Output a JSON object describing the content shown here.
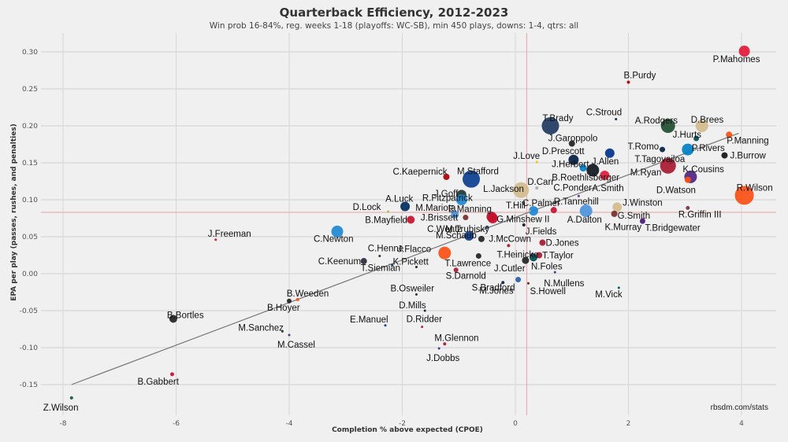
{
  "chart_data": {
    "type": "scatter",
    "title": "Quarterback Efficiency, 2012-2023",
    "subtitle": "Win prob 16-84%, reg. weeks 1-18 (playoffs: WC-SB), min 450 plays, downs: 1-4, qtrs: all",
    "xlabel": "Completion % above expected (CPOE)",
    "ylabel": "EPA per play (passes, rushes, and penalties)",
    "xlim": [
      -8.3,
      4.6
    ],
    "ylim": [
      -0.18,
      0.32
    ],
    "xticks": [
      -8,
      -6,
      -4,
      -2,
      0,
      2,
      4
    ],
    "xtick_labels": [
      "-8",
      "-6",
      "-4",
      "-2",
      "0",
      "2",
      "4"
    ],
    "yticks": [
      0.3,
      0.25,
      0.2,
      0.15,
      0.1,
      0.05,
      0.0,
      -0.05,
      -0.1,
      -0.15
    ],
    "ytick_labels": [
      "0.30",
      "0.25",
      "0.20",
      "0.15",
      "0.10",
      "0.05",
      "0.00",
      "-0.05",
      "-0.10",
      "-0.15"
    ],
    "grid": true,
    "reference_lines": {
      "x_mean": 0.2,
      "y_mean": 0.083,
      "color": "#e8a0a0"
    },
    "trend_line": {
      "x": [
        -7.85,
        3.95
      ],
      "y": [
        -0.15,
        0.19
      ],
      "color": "#777777"
    },
    "credit": "rbsdm.com/stats",
    "points": [
      {
        "name": "P.Mahomes",
        "x": 4.05,
        "y": 0.301,
        "size": 7,
        "color": "#e31837"
      },
      {
        "name": "B.Purdy",
        "x": 2.0,
        "y": 0.259,
        "size": 2,
        "color": "#aa0000"
      },
      {
        "name": "T.Brady",
        "x": 0.62,
        "y": 0.2,
        "size": 11,
        "color": "#203a60"
      },
      {
        "name": "C.Stroud",
        "x": 1.78,
        "y": 0.209,
        "size": 1.5,
        "color": "#03202f"
      },
      {
        "name": "A.Rodgers",
        "x": 2.7,
        "y": 0.2,
        "size": 9,
        "color": "#204e32"
      },
      {
        "name": "D.Brees",
        "x": 3.3,
        "y": 0.2,
        "size": 8,
        "color": "#d3bc8d"
      },
      {
        "name": "J.Hurts",
        "x": 3.2,
        "y": 0.183,
        "size": 3.5,
        "color": "#004c54"
      },
      {
        "name": "P.Manning",
        "x": 3.78,
        "y": 0.188,
        "size": 4,
        "color": "#fb4f14"
      },
      {
        "name": "J.Garoppolo",
        "x": 1.0,
        "y": 0.176,
        "size": 4,
        "color": "#222222"
      },
      {
        "name": "T.Romo",
        "x": 2.6,
        "y": 0.168,
        "size": 3.5,
        "color": "#041e42"
      },
      {
        "name": "P.Rivers",
        "x": 3.05,
        "y": 0.168,
        "size": 7.5,
        "color": "#0080c6"
      },
      {
        "name": "D.Prescott",
        "x": 1.03,
        "y": 0.154,
        "size": 6.5,
        "color": "#041e42"
      },
      {
        "name": "J.Allen",
        "x": 1.67,
        "y": 0.163,
        "size": 6,
        "color": "#00338d"
      },
      {
        "name": "J.Burrow",
        "x": 3.7,
        "y": 0.16,
        "size": 4,
        "color": "#111111"
      },
      {
        "name": "J.Herbert",
        "x": 1.2,
        "y": 0.143,
        "size": 4.5,
        "color": "#0080c6"
      },
      {
        "name": "B.Roethlisberger",
        "x": 1.37,
        "y": 0.14,
        "size": 8,
        "color": "#101820"
      },
      {
        "name": "T.Tagovailoa",
        "x": 2.75,
        "y": 0.151,
        "size": 3,
        "color": "#008e97"
      },
      {
        "name": "M.Ryan",
        "x": 2.7,
        "y": 0.146,
        "size": 10,
        "color": "#a71930"
      },
      {
        "name": "J.Love",
        "x": 0.38,
        "y": 0.151,
        "size": 1.5,
        "color": "#ffb612"
      },
      {
        "name": "A.Smith",
        "x": 1.58,
        "y": 0.133,
        "size": 6,
        "color": "#e31837"
      },
      {
        "name": "K.Cousins",
        "x": 3.1,
        "y": 0.131,
        "size": 8,
        "color": "#4f2683"
      },
      {
        "name": "D.Watson",
        "x": 3.05,
        "y": 0.127,
        "size": 4,
        "color": "#fb4f14"
      },
      {
        "name": "C.Kaepernick",
        "x": -1.22,
        "y": 0.131,
        "size": 4,
        "color": "#aa0000"
      },
      {
        "name": "M.Stafford",
        "x": -0.78,
        "y": 0.128,
        "size": 11,
        "color": "#0b3e91"
      },
      {
        "name": "R.Fitzpatrick",
        "x": -0.95,
        "y": 0.107,
        "size": 6,
        "color": "#203731"
      },
      {
        "name": "J.Goff",
        "x": -0.95,
        "y": 0.1,
        "size": 7,
        "color": "#1e88d3"
      },
      {
        "name": "L.Jackson",
        "x": 0.1,
        "y": 0.113,
        "size": 10,
        "color": "#d3bc8d"
      },
      {
        "name": "D.Carr",
        "x": 0.38,
        "y": 0.116,
        "size": 2,
        "color": "#a5acaf"
      },
      {
        "name": "A.Luck",
        "x": -1.95,
        "y": 0.091,
        "size": 6,
        "color": "#002c5f"
      },
      {
        "name": "R.Wilson",
        "x": 4.05,
        "y": 0.106,
        "size": 12,
        "color": "#fb4f14"
      },
      {
        "name": "D.Lock",
        "x": -2.25,
        "y": 0.084,
        "size": 1.5,
        "color": "#a3c14a"
      },
      {
        "name": "C.Palmer",
        "x": 0.32,
        "y": 0.085,
        "size": 6,
        "color": "#1e88d3"
      },
      {
        "name": "R.Tannehill",
        "x": 0.68,
        "y": 0.086,
        "size": 4,
        "color": "#c8102e"
      },
      {
        "name": "A.Dalton",
        "x": 1.25,
        "y": 0.085,
        "size": 8,
        "color": "#4b92db"
      },
      {
        "name": "C.Ponder",
        "x": 1.12,
        "y": 0.105,
        "size": 1.5,
        "color": "#4f2683"
      },
      {
        "name": "J.Winston",
        "x": 1.8,
        "y": 0.09,
        "size": 6,
        "color": "#d3bc8d"
      },
      {
        "name": "G.Smith",
        "x": 1.75,
        "y": 0.081,
        "size": 4,
        "color": "#7a2a2a"
      },
      {
        "name": "R.Griffin III",
        "x": 3.05,
        "y": 0.089,
        "size": 2.5,
        "color": "#773141"
      },
      {
        "name": "K.Murray",
        "x": 2.25,
        "y": 0.072,
        "size": 3,
        "color": "#97233f"
      },
      {
        "name": "T.Bridgewater",
        "x": 2.25,
        "y": 0.071,
        "size": 3.5,
        "color": "#4f2683"
      },
      {
        "name": "T.Hill",
        "x": 0.25,
        "y": 0.085,
        "size": 1.5,
        "color": "#d3bc8d"
      },
      {
        "name": "M.Mariota",
        "x": -1.07,
        "y": 0.08,
        "size": 5,
        "color": "#4b92db"
      },
      {
        "name": "E.Manning",
        "x": -0.42,
        "y": 0.077,
        "size": 6.5,
        "color": "#a71930"
      },
      {
        "name": "G.Minshew II",
        "x": -0.4,
        "y": 0.075,
        "size": 6.5,
        "color": "#c8102e"
      },
      {
        "name": "B.Mayfield",
        "x": -1.85,
        "y": 0.073,
        "size": 5,
        "color": "#c8102e"
      },
      {
        "name": "J.Brissett",
        "x": -0.88,
        "y": 0.076,
        "size": 3.5,
        "color": "#7a2a2a"
      },
      {
        "name": "J.Fields",
        "x": 0.15,
        "y": 0.066,
        "size": 2,
        "color": "#0b162a"
      },
      {
        "name": "C.Wentz",
        "x": -0.5,
        "y": 0.063,
        "size": 2,
        "color": "#203a60"
      },
      {
        "name": "M.Trubisky",
        "x": -0.82,
        "y": 0.051,
        "size": 6,
        "color": "#0b3e91"
      },
      {
        "name": "M.Schaub",
        "x": -0.6,
        "y": 0.047,
        "size": 4,
        "color": "#222222"
      },
      {
        "name": "C.Newton",
        "x": -3.15,
        "y": 0.057,
        "size": 7.5,
        "color": "#1e88d3"
      },
      {
        "name": "J.Freeman",
        "x": -5.3,
        "y": 0.046,
        "size": 1.5,
        "color": "#c8102e"
      },
      {
        "name": "J.McCown",
        "x": -0.12,
        "y": 0.038,
        "size": 2,
        "color": "#a71930"
      },
      {
        "name": "D.Jones",
        "x": 0.48,
        "y": 0.042,
        "size": 4,
        "color": "#a71930"
      },
      {
        "name": "T.Heinicke",
        "x": 0.3,
        "y": 0.026,
        "size": 2,
        "color": "#773141"
      },
      {
        "name": "T.Taylor",
        "x": 0.42,
        "y": 0.025,
        "size": 4,
        "color": "#a71930"
      },
      {
        "name": "N.Foles",
        "x": 0.32,
        "y": 0.022,
        "size": 5,
        "color": "#004c54"
      },
      {
        "name": "J.Cutler",
        "x": 0.18,
        "y": 0.018,
        "size": 4.5,
        "color": "#222222"
      },
      {
        "name": "J.Flacco",
        "x": -1.25,
        "y": 0.028,
        "size": 8,
        "color": "#fb4f14"
      },
      {
        "name": "T.Lawrence",
        "x": -0.65,
        "y": 0.024,
        "size": 3.5,
        "color": "#222222"
      },
      {
        "name": "C.Henne",
        "x": -2.4,
        "y": 0.024,
        "size": 1.5,
        "color": "#222222"
      },
      {
        "name": "C.Keenum",
        "x": -2.68,
        "y": 0.017,
        "size": 4,
        "color": "#2a2a3a"
      },
      {
        "name": "T.Siemian",
        "x": -2.18,
        "y": 0.012,
        "size": 1.5,
        "color": "#003a70"
      },
      {
        "name": "K.Pickett",
        "x": -1.75,
        "y": 0.009,
        "size": 1.5,
        "color": "#111111"
      },
      {
        "name": "S.Darnold",
        "x": -1.05,
        "y": 0.005,
        "size": 3,
        "color": "#a71930"
      },
      {
        "name": "N.Mullens",
        "x": 0.7,
        "y": 0.002,
        "size": 1.5,
        "color": "#4f2683"
      },
      {
        "name": "S.Bradford",
        "x": 0.05,
        "y": -0.008,
        "size": 3.5,
        "color": "#2a5caa"
      },
      {
        "name": "S.Howell",
        "x": 0.23,
        "y": -0.013,
        "size": 1.5,
        "color": "#5a1414"
      },
      {
        "name": "M.Jones",
        "x": -0.22,
        "y": -0.012,
        "size": 2,
        "color": "#002244"
      },
      {
        "name": "M.Vick",
        "x": 1.83,
        "y": -0.019,
        "size": 1.5,
        "color": "#004c54"
      },
      {
        "name": "B.Osweiler",
        "x": -1.75,
        "y": -0.028,
        "size": 1.5,
        "color": "#222222"
      },
      {
        "name": "D.Mills",
        "x": -1.6,
        "y": -0.05,
        "size": 1.5,
        "color": "#03202f"
      },
      {
        "name": "B.Weeden",
        "x": -3.85,
        "y": -0.035,
        "size": 2,
        "color": "#fb4f14"
      },
      {
        "name": "B.Hoyer",
        "x": -4.0,
        "y": -0.037,
        "size": 3,
        "color": "#222222"
      },
      {
        "name": "B.Bortles",
        "x": -6.05,
        "y": -0.061,
        "size": 5,
        "color": "#222222"
      },
      {
        "name": "M.Sanchez",
        "x": -4.12,
        "y": -0.078,
        "size": 1.5,
        "color": "#203731"
      },
      {
        "name": "M.Cassel",
        "x": -4.0,
        "y": -0.083,
        "size": 1.5,
        "color": "#4f2683"
      },
      {
        "name": "E.Manuel",
        "x": -2.3,
        "y": -0.07,
        "size": 1.5,
        "color": "#00338d"
      },
      {
        "name": "D.Ridder",
        "x": -1.65,
        "y": -0.072,
        "size": 1.5,
        "color": "#a71930"
      },
      {
        "name": "M.Glennon",
        "x": -1.25,
        "y": -0.095,
        "size": 2,
        "color": "#a71930"
      },
      {
        "name": "J.Dobbs",
        "x": -1.35,
        "y": -0.101,
        "size": 1.5,
        "color": "#4f2683"
      },
      {
        "name": "B.Gabbert",
        "x": -6.07,
        "y": -0.136,
        "size": 2.5,
        "color": "#c8102e"
      },
      {
        "name": "Z.Wilson",
        "x": -7.85,
        "y": -0.168,
        "size": 2,
        "color": "#125740"
      }
    ]
  }
}
